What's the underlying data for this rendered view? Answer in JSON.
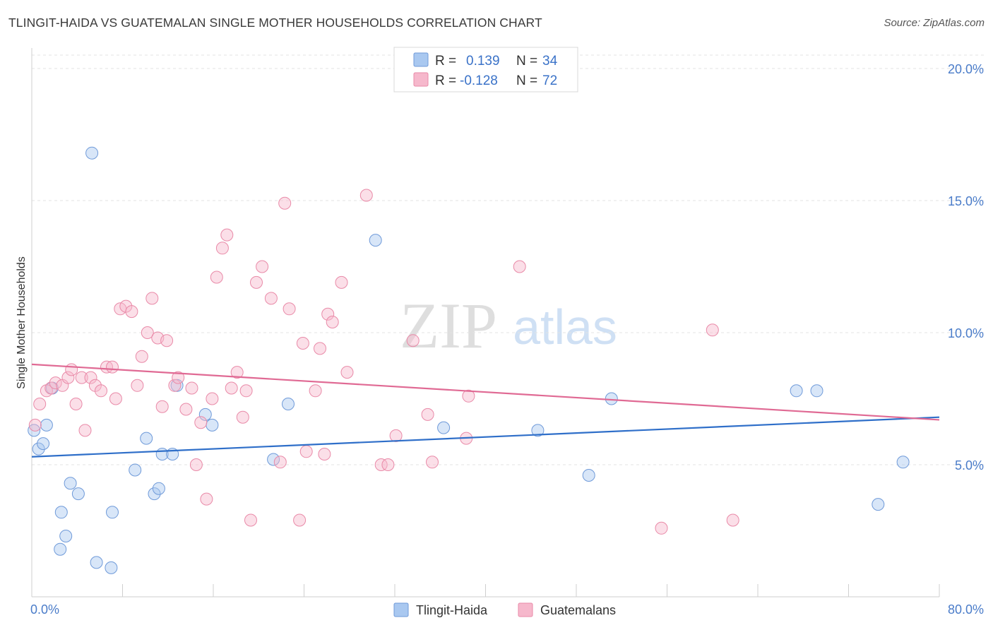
{
  "title": "TLINGIT-HAIDA VS GUATEMALAN SINGLE MOTHER HOUSEHOLDS CORRELATION CHART",
  "source": "Source: ZipAtlas.com",
  "watermark": {
    "zip": "ZIP",
    "atlas": "atlas"
  },
  "legend_top": {
    "rows": [
      {
        "r_label": "R =",
        "r_value": "0.139",
        "n_label": "N =",
        "n_value": "34",
        "color": "#a9c8f0",
        "stroke": "#6f9ad9"
      },
      {
        "r_label": "R =",
        "r_value": "-0.128",
        "n_label": "N =",
        "n_value": "72",
        "color": "#f6b8cc",
        "stroke": "#e98aa8"
      }
    ]
  },
  "legend_bottom": {
    "items": [
      {
        "label": "Tlingit-Haida",
        "color": "#a9c8f0",
        "stroke": "#6f9ad9"
      },
      {
        "label": "Guatemalans",
        "color": "#f6b8cc",
        "stroke": "#e98aa8"
      }
    ]
  },
  "chart_data": {
    "type": "scatter",
    "xlabel": "",
    "ylabel": "Single Mother Households",
    "xlim": [
      0,
      80
    ],
    "ylim": [
      0,
      20
    ],
    "x_tick_labels": [
      "0.0%",
      "80.0%"
    ],
    "y_tick_labels": [
      "5.0%",
      "10.0%",
      "15.0%",
      "20.0%"
    ],
    "y_ticks": [
      5,
      10,
      15,
      20
    ],
    "grid": "horizontal dashed",
    "legend_position": "top-center",
    "series": [
      {
        "name": "Tlingit-Haida",
        "color": "#a9c8f0",
        "stroke": "#6f9ad9",
        "line_color": "#2f6fc9",
        "trend": [
          [
            0,
            5.3
          ],
          [
            80,
            6.8
          ]
        ],
        "points": [
          [
            0.2,
            6.3
          ],
          [
            0.6,
            5.6
          ],
          [
            1.0,
            5.8
          ],
          [
            1.3,
            6.5
          ],
          [
            1.8,
            7.9
          ],
          [
            2.5,
            1.8
          ],
          [
            2.6,
            3.2
          ],
          [
            3.0,
            2.3
          ],
          [
            3.4,
            4.3
          ],
          [
            4.1,
            3.9
          ],
          [
            5.3,
            16.8
          ],
          [
            5.7,
            1.3
          ],
          [
            7.0,
            1.1
          ],
          [
            7.1,
            3.2
          ],
          [
            9.1,
            4.8
          ],
          [
            10.1,
            6.0
          ],
          [
            10.8,
            3.9
          ],
          [
            11.2,
            4.1
          ],
          [
            11.5,
            5.4
          ],
          [
            12.4,
            5.4
          ],
          [
            12.8,
            8.0
          ],
          [
            15.3,
            6.9
          ],
          [
            15.9,
            6.5
          ],
          [
            21.3,
            5.2
          ],
          [
            22.6,
            7.3
          ],
          [
            30.3,
            13.5
          ],
          [
            36.3,
            6.4
          ],
          [
            44.6,
            6.3
          ],
          [
            49.1,
            4.6
          ],
          [
            51.1,
            7.5
          ],
          [
            67.4,
            7.8
          ],
          [
            69.2,
            7.8
          ],
          [
            74.6,
            3.5
          ],
          [
            76.8,
            5.1
          ]
        ]
      },
      {
        "name": "Guatemalans",
        "color": "#f6b8cc",
        "stroke": "#e98aa8",
        "line_color": "#e06a94",
        "trend": [
          [
            0,
            8.8
          ],
          [
            80,
            6.7
          ]
        ],
        "points": [
          [
            0.3,
            6.5
          ],
          [
            0.7,
            7.3
          ],
          [
            1.3,
            7.8
          ],
          [
            1.7,
            7.9
          ],
          [
            2.1,
            8.1
          ],
          [
            2.7,
            8.0
          ],
          [
            3.2,
            8.3
          ],
          [
            3.5,
            8.6
          ],
          [
            3.9,
            7.3
          ],
          [
            4.4,
            8.3
          ],
          [
            4.7,
            6.3
          ],
          [
            5.2,
            8.3
          ],
          [
            5.6,
            8.0
          ],
          [
            6.1,
            7.8
          ],
          [
            6.6,
            8.7
          ],
          [
            7.1,
            8.7
          ],
          [
            7.4,
            7.5
          ],
          [
            7.8,
            10.9
          ],
          [
            8.3,
            11.0
          ],
          [
            8.8,
            10.8
          ],
          [
            9.3,
            8.0
          ],
          [
            9.7,
            9.1
          ],
          [
            10.2,
            10.0
          ],
          [
            10.6,
            11.3
          ],
          [
            11.1,
            9.8
          ],
          [
            11.5,
            7.2
          ],
          [
            11.9,
            9.7
          ],
          [
            12.6,
            8.0
          ],
          [
            12.9,
            8.3
          ],
          [
            13.6,
            7.1
          ],
          [
            14.1,
            7.9
          ],
          [
            14.5,
            5.0
          ],
          [
            14.9,
            6.6
          ],
          [
            15.4,
            3.7
          ],
          [
            15.9,
            7.5
          ],
          [
            16.3,
            12.1
          ],
          [
            16.8,
            13.2
          ],
          [
            17.2,
            13.7
          ],
          [
            17.6,
            7.9
          ],
          [
            18.1,
            8.5
          ],
          [
            18.6,
            6.8
          ],
          [
            18.9,
            7.8
          ],
          [
            19.3,
            2.9
          ],
          [
            19.8,
            11.9
          ],
          [
            20.3,
            12.5
          ],
          [
            21.1,
            11.3
          ],
          [
            21.9,
            5.1
          ],
          [
            22.3,
            14.9
          ],
          [
            22.7,
            10.9
          ],
          [
            23.6,
            2.9
          ],
          [
            23.9,
            9.6
          ],
          [
            24.2,
            5.5
          ],
          [
            25.0,
            7.8
          ],
          [
            25.4,
            9.4
          ],
          [
            25.8,
            5.4
          ],
          [
            26.1,
            10.7
          ],
          [
            26.5,
            10.4
          ],
          [
            27.3,
            11.9
          ],
          [
            27.8,
            8.5
          ],
          [
            29.5,
            15.2
          ],
          [
            30.8,
            5.0
          ],
          [
            31.4,
            5.0
          ],
          [
            32.1,
            6.1
          ],
          [
            33.6,
            9.7
          ],
          [
            34.9,
            6.9
          ],
          [
            35.3,
            5.1
          ],
          [
            38.3,
            6.0
          ],
          [
            38.5,
            7.6
          ],
          [
            43.0,
            12.5
          ],
          [
            55.5,
            2.6
          ],
          [
            60.0,
            10.1
          ],
          [
            61.8,
            2.9
          ]
        ]
      }
    ]
  }
}
